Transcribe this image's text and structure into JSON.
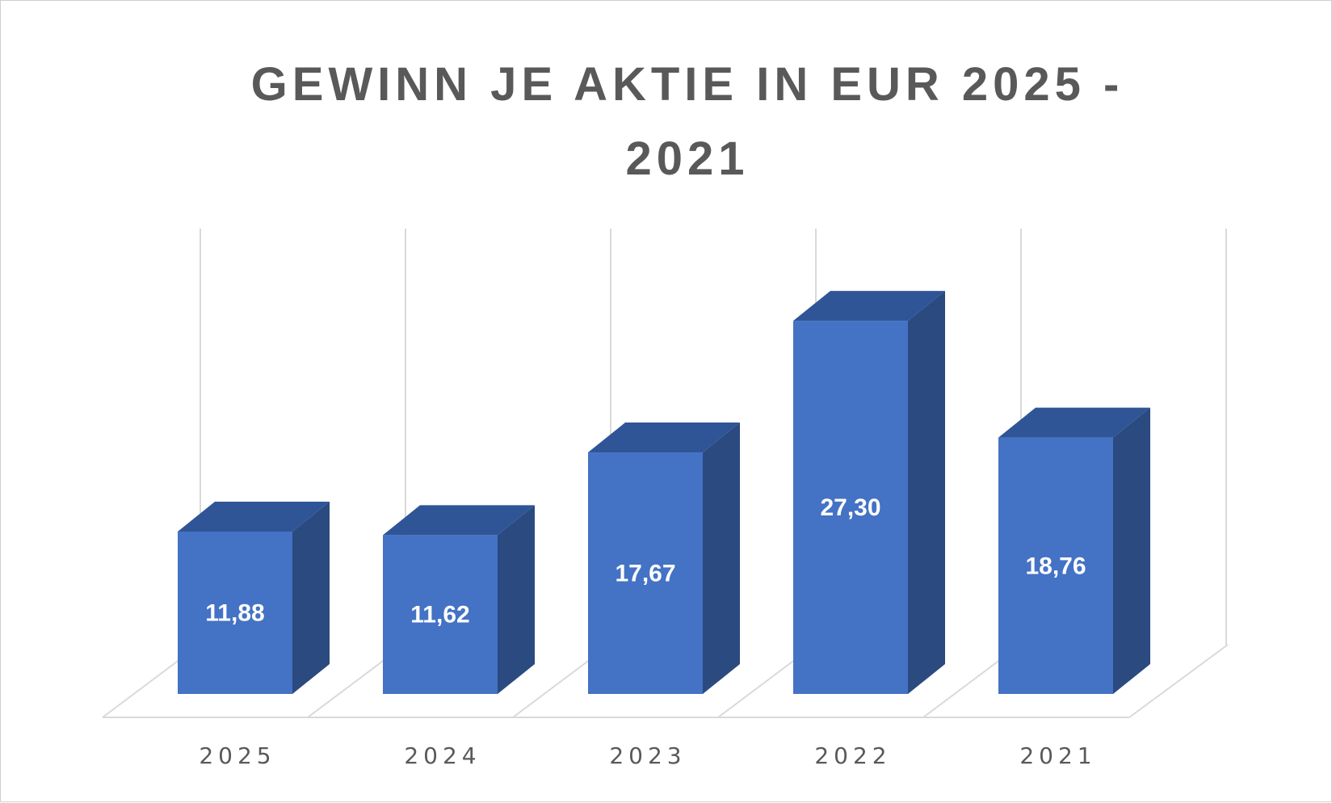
{
  "chart_data": {
    "type": "bar",
    "title": "GEWINN JE AKTIE IN EUR 2025 - 2021",
    "categories": [
      "2025",
      "2024",
      "2023",
      "2022",
      "2021"
    ],
    "values": [
      11.88,
      11.62,
      17.67,
      27.3,
      18.76
    ],
    "data_labels": [
      "11,88",
      "11,62",
      "17,67",
      "27,30",
      "18,76"
    ],
    "xlabel": "",
    "ylabel": "",
    "ylim": [
      0,
      30
    ],
    "grid": false,
    "legend": "none",
    "style": "3d-column",
    "colors": {
      "front": "#4472c4",
      "top": "#2f5597",
      "side": "#2a4a80",
      "gridline": "#d9d9d9",
      "text": "#595959"
    }
  }
}
